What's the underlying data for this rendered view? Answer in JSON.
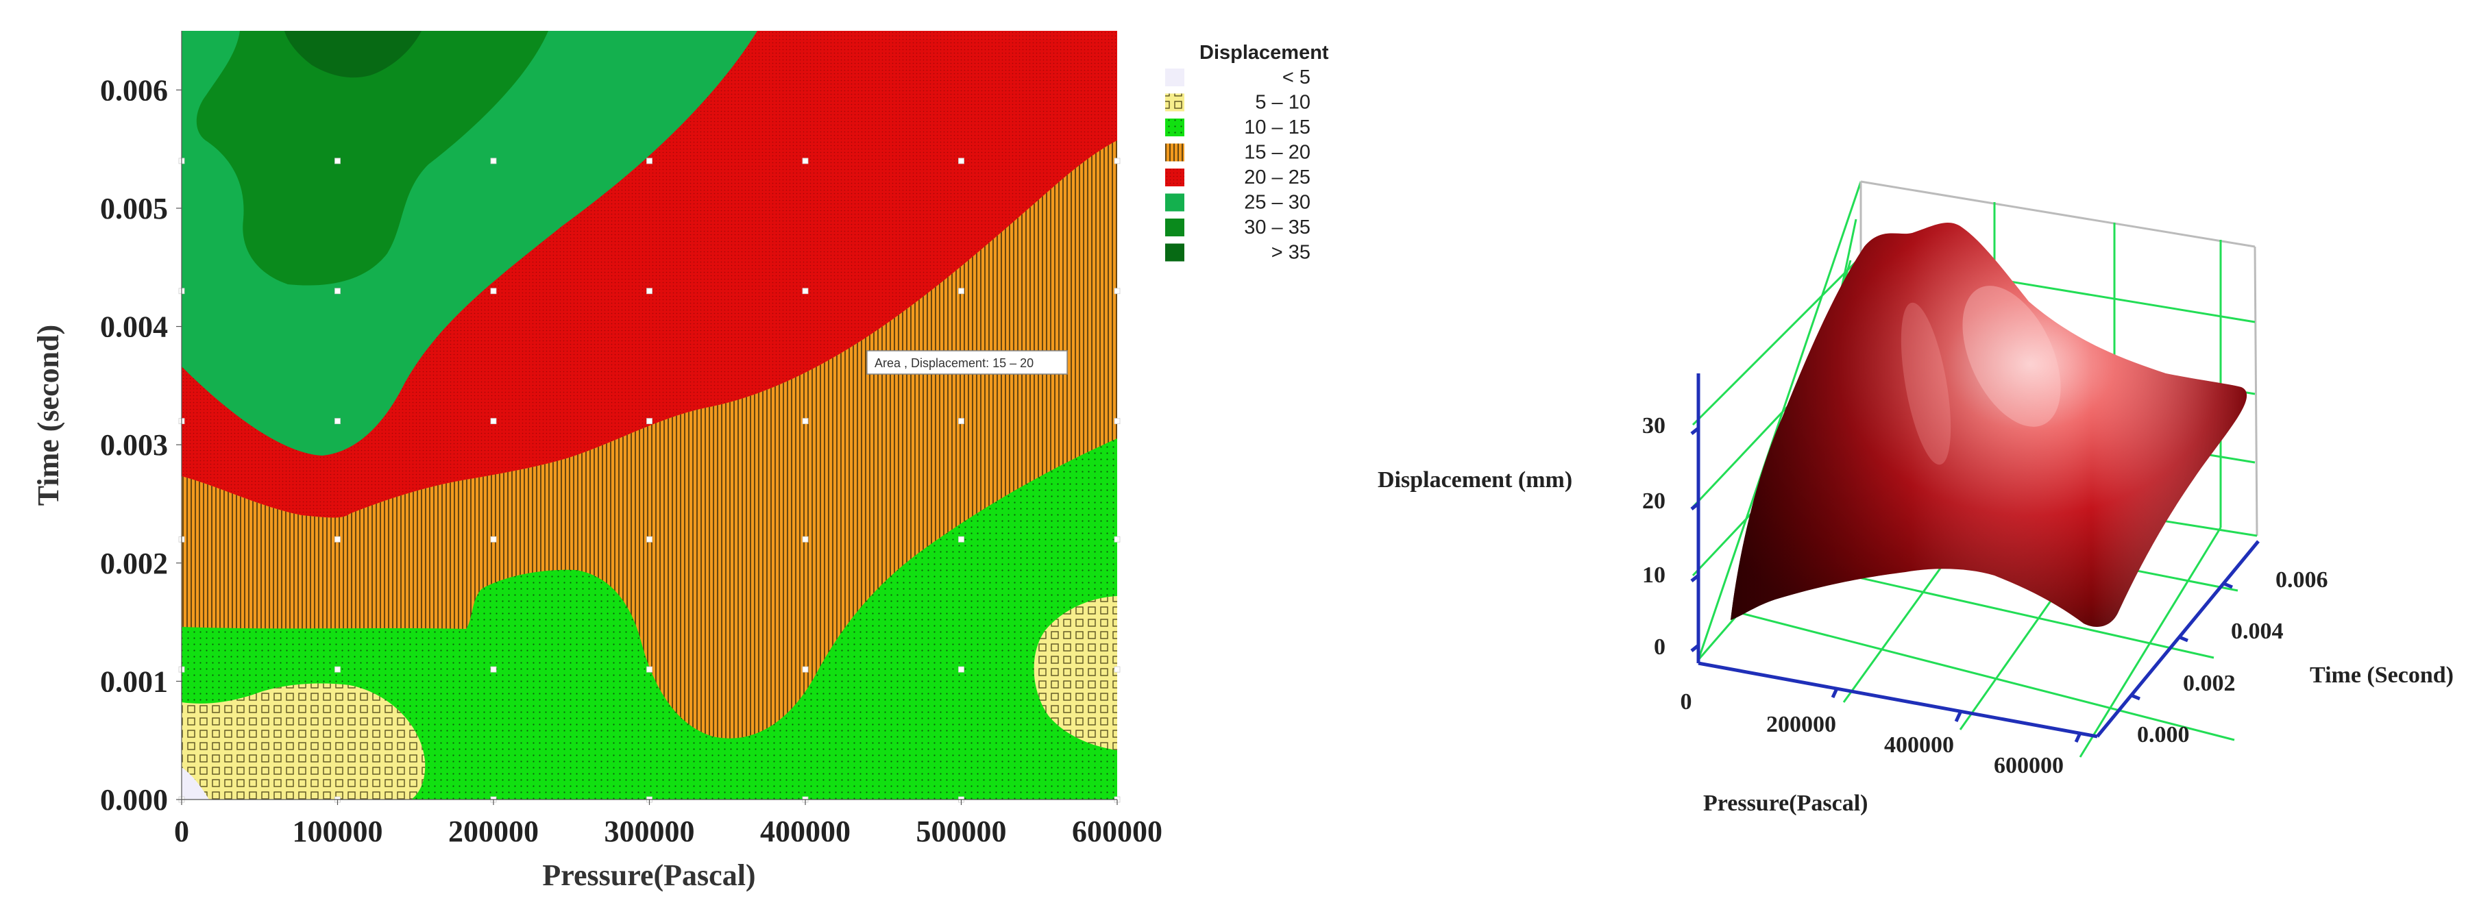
{
  "contour_chart": {
    "type": "contour",
    "xlabel": "Pressure(Pascal)",
    "ylabel": "Time (second)",
    "xlim": [
      0,
      600000
    ],
    "ylim": [
      0,
      0.0065
    ],
    "x_ticks": [
      "0",
      "100000",
      "200000",
      "300000",
      "400000",
      "500000",
      "600000"
    ],
    "y_ticks": [
      "0.000",
      "0.001",
      "0.002",
      "0.003",
      "0.004",
      "0.005",
      "0.006"
    ],
    "legend_title": "Displacement",
    "legend": [
      {
        "range": "<   5",
        "color": "#f0eefa"
      },
      {
        "range": "5  –   10",
        "color": "#f7ee8c"
      },
      {
        "range": "10  –   15",
        "color": "#11e011"
      },
      {
        "range": "15  –   20",
        "color": "#f29a1e"
      },
      {
        "range": "20  –   25",
        "color": "#e00b0b"
      },
      {
        "range": "25  –   30",
        "color": "#14b04e"
      },
      {
        "range": "30  –   35",
        "color": "#0a8a1c"
      },
      {
        "range": ">   35",
        "color": "#076a14"
      }
    ],
    "tooltip": "Area , Displacement: 15  –  20",
    "sample_points": {
      "x": [
        0,
        100000,
        200000,
        300000,
        400000,
        500000,
        600000
      ],
      "y": [
        0.0,
        0.0011,
        0.0022,
        0.0032,
        0.0043,
        0.0054
      ]
    },
    "regions_approx": [
      {
        "level": "<   5",
        "x": [
          0,
          15000
        ],
        "y": [
          0,
          0.0002
        ]
      },
      {
        "level": "5  –   10",
        "x": [
          0,
          155000
        ],
        "y": [
          0,
          0.00085
        ]
      },
      {
        "level": "5  –   10",
        "x": [
          545000,
          600000
        ],
        "y": [
          0.0001,
          0.0017
        ]
      },
      {
        "level": "10  –   15",
        "x": [
          0,
          600000
        ],
        "y": [
          0,
          0.003
        ]
      },
      {
        "level": "15  –   20",
        "x": [
          0,
          600000
        ],
        "y": [
          0.0005,
          0.0055
        ]
      },
      {
        "level": "20  –   25",
        "x": [
          0,
          600000
        ],
        "y": [
          0.0021,
          0.0065
        ]
      },
      {
        "level": "25  –   30",
        "x": [
          0,
          370000
        ],
        "y": [
          0.0029,
          0.0065
        ]
      },
      {
        "level": "30  –   35",
        "x": [
          40000,
          250000
        ],
        "y": [
          0.0043,
          0.0065
        ]
      },
      {
        "level": ">   35",
        "x": [
          70000,
          150000
        ],
        "y": [
          0.006,
          0.0065
        ]
      }
    ]
  },
  "surface_chart": {
    "type": "surface",
    "zlabel": "Displacement (mm)",
    "xlabel": "Pressure(Pascal)",
    "ylabel": "Time (Second)",
    "x_ticks": [
      "0",
      "200000",
      "400000",
      "600000"
    ],
    "y_ticks": [
      "0.000",
      "0.002",
      "0.004",
      "0.006"
    ],
    "z_ticks": [
      "0",
      "10",
      "20",
      "30"
    ],
    "surface_color": "#c0101a",
    "grid_color": "#22dd55",
    "axis_color": "#1f2fb8"
  }
}
